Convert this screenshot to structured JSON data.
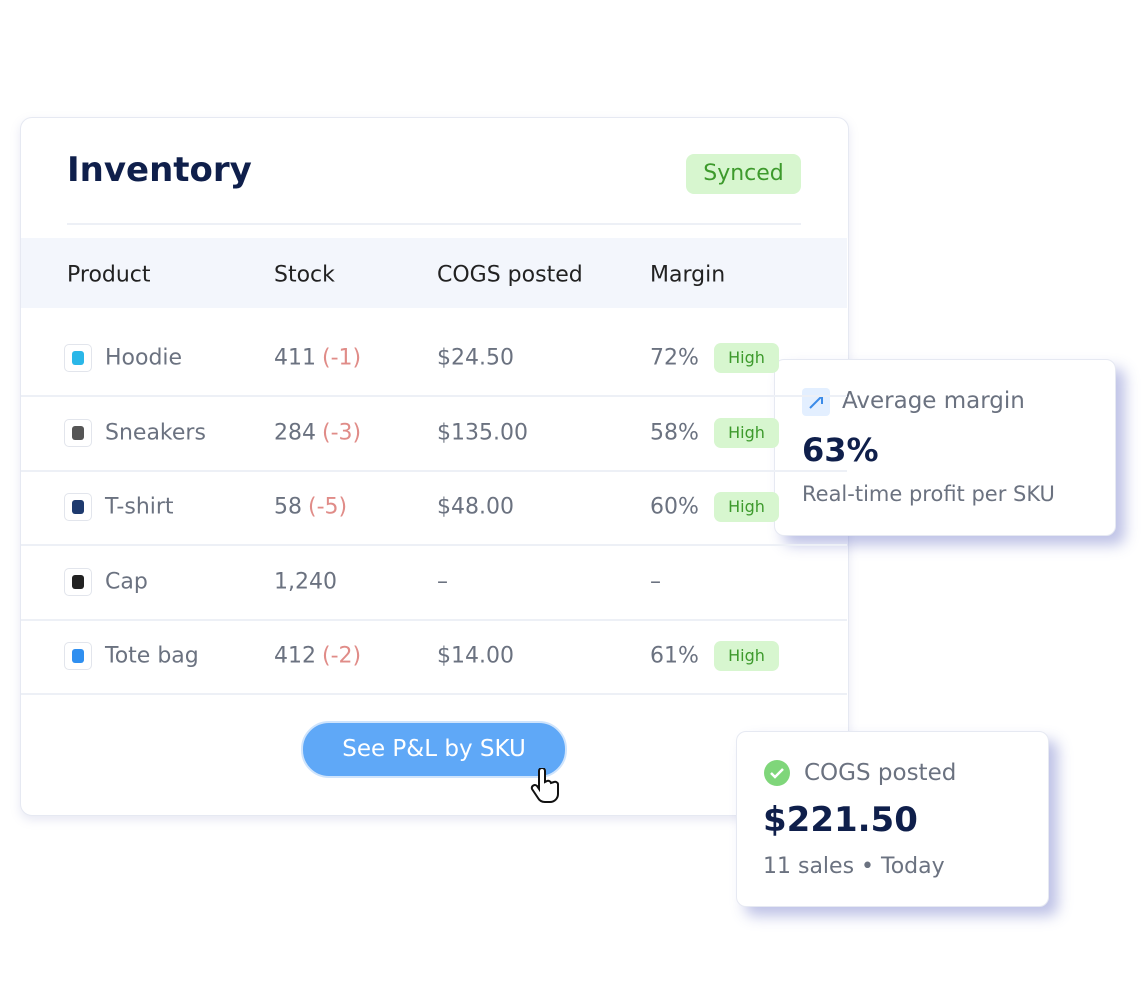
{
  "inventory": {
    "title": "Inventory",
    "status": "Synced",
    "columns": [
      "Product",
      "Stock",
      "COGS posted",
      "Margin"
    ],
    "rows": [
      {
        "product": "Hoodie",
        "stock": "411",
        "change": "(-1)",
        "cogs": "$24.50",
        "margin": "72%",
        "badge": "High"
      },
      {
        "product": "Sneakers",
        "stock": "284",
        "change": "(-3)",
        "cogs": "$135.00",
        "margin": "58%",
        "badge": "High"
      },
      {
        "product": "T-shirt",
        "stock": "58",
        "change": "(-5)",
        "cogs": "$48.00",
        "margin": "60%",
        "badge": "High"
      },
      {
        "product": "Cap",
        "stock": "1,240",
        "cogs": "–",
        "margin": "–"
      },
      {
        "product": "Tote bag",
        "stock": "412",
        "change": "(-2)",
        "cogs": "$14.00",
        "margin": "61%",
        "badge": "High"
      }
    ],
    "button": "See P&L by SKU"
  },
  "margin_card": {
    "label": "Average margin",
    "value": "63%",
    "note": "Real-time profit per SKU"
  },
  "cogs_card": {
    "label": "COGS posted",
    "value": "$221.50",
    "note": "11 sales • Today"
  }
}
